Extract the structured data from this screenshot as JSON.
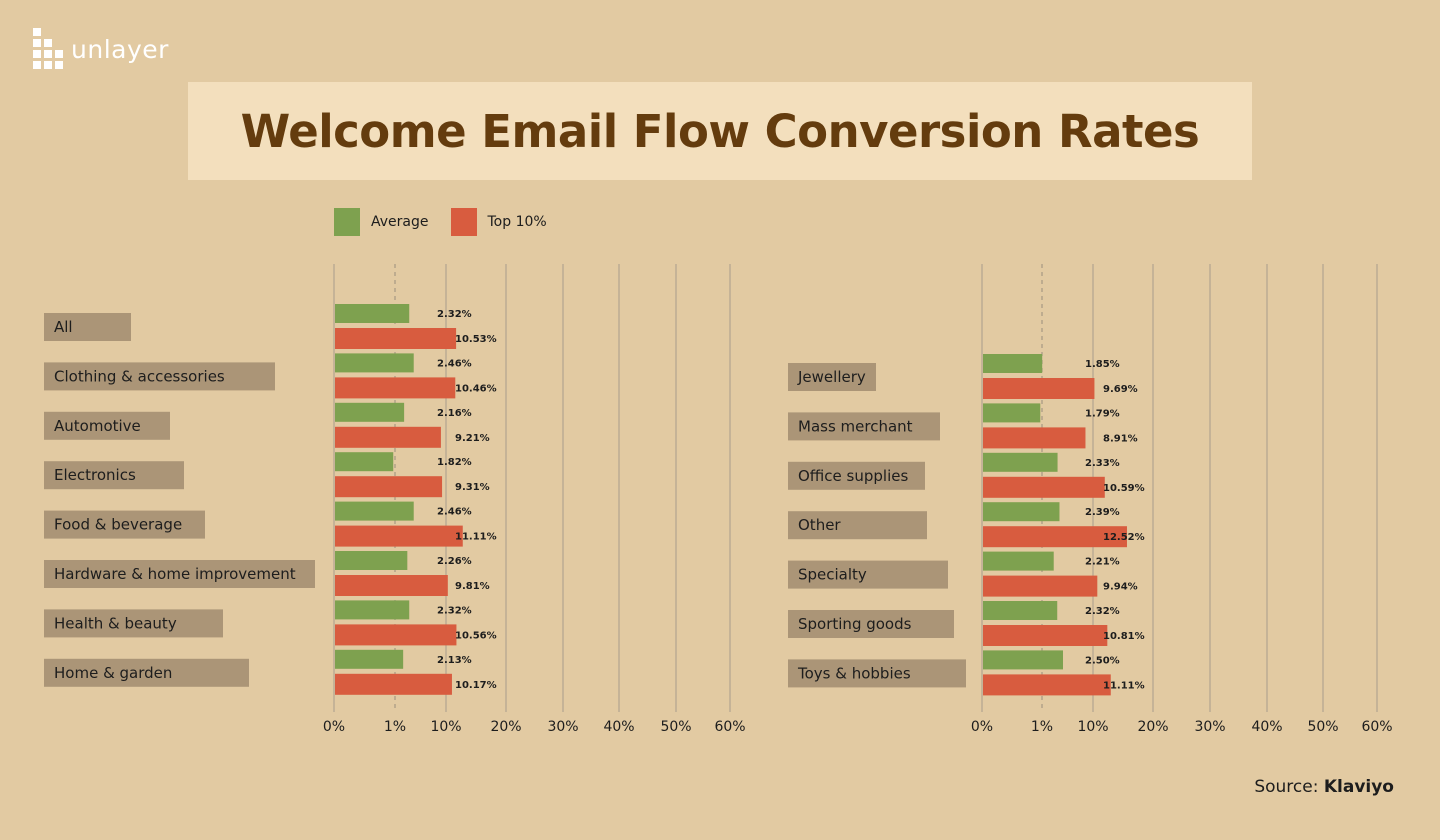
{
  "brand": {
    "name": "unlayer"
  },
  "header": {
    "title": "Welcome Email Flow Conversion Rates"
  },
  "footer": {
    "source_label": "Source:",
    "source_name": "Klaviyo"
  },
  "colors": {
    "background": "#e2caa2",
    "title_band": "#f3dfbd",
    "title": "#643c0e",
    "average": "#7ea14f",
    "top10": "#d85c3f",
    "category_label_bg": "#ab9577"
  },
  "chart_data": [
    {
      "type": "bar",
      "orientation": "horizontal",
      "title": "",
      "xlabel": "",
      "ylabel": "",
      "x_ticks": [
        "0%",
        "1%",
        "10%",
        "20%",
        "30%",
        "40%",
        "50%",
        "60%"
      ],
      "grid": true,
      "legend": "top",
      "categories": [
        "All",
        "Clothing & accessories",
        "Automotive",
        "Electronics",
        "Food & beverage",
        "Hardware & home improvement",
        "Health & beauty",
        "Home & garden"
      ],
      "series": [
        {
          "name": "Average",
          "color": "#7ea14f",
          "values": [
            2.32,
            2.46,
            2.16,
            1.82,
            2.46,
            2.26,
            2.32,
            2.13
          ],
          "labels": [
            "2.32%",
            "2.46%",
            "2.16%",
            "1.82%",
            "2.46%",
            "2.26%",
            "2.32%",
            "2.13%"
          ]
        },
        {
          "name": "Top 10%",
          "color": "#d85c3f",
          "values": [
            10.53,
            10.46,
            9.21,
            9.31,
            11.11,
            9.81,
            10.56,
            10.17
          ],
          "labels": [
            "10.53%",
            "10.46%",
            "9.21%",
            "9.31%",
            "11.11%",
            "9.81%",
            "10.56%",
            "10.17%"
          ]
        }
      ]
    },
    {
      "type": "bar",
      "orientation": "horizontal",
      "title": "",
      "xlabel": "",
      "ylabel": "",
      "x_ticks": [
        "0%",
        "1%",
        "10%",
        "20%",
        "30%",
        "40%",
        "50%",
        "60%"
      ],
      "grid": true,
      "categories": [
        "Jewellery",
        "Mass merchant",
        "Office supplies",
        "Other",
        "Specialty",
        "Sporting goods",
        "Toys & hobbies"
      ],
      "series": [
        {
          "name": "Average",
          "color": "#7ea14f",
          "values": [
            1.85,
            1.79,
            2.33,
            2.39,
            2.21,
            2.32,
            2.5
          ],
          "labels": [
            "1.85%",
            "1.79%",
            "2.33%",
            "2.39%",
            "2.21%",
            "2.32%",
            "2.50%"
          ]
        },
        {
          "name": "Top 10%",
          "color": "#d85c3f",
          "values": [
            9.69,
            8.91,
            10.59,
            12.52,
            9.94,
            10.81,
            11.11
          ],
          "labels": [
            "9.69%",
            "8.91%",
            "10.59%",
            "12.52%",
            "9.94%",
            "10.81%",
            "11.11%"
          ]
        }
      ]
    }
  ]
}
